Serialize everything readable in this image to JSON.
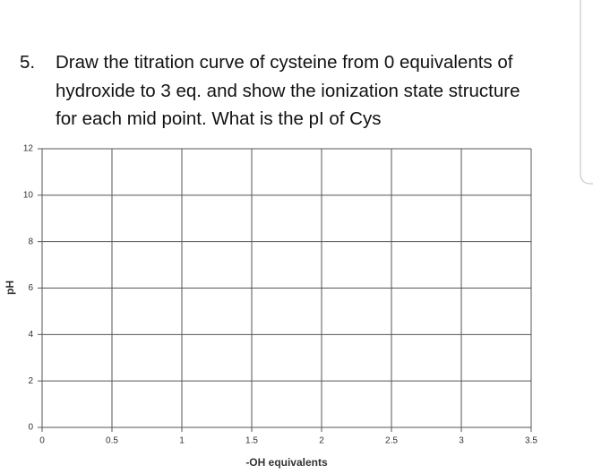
{
  "question": {
    "number": "5.",
    "lines": [
      "Draw the titration curve of cysteine from 0 equivalents of",
      "hydroxide to 3 eq. and show the ionization state structure",
      "for each mid point. What is the pI of Cys"
    ]
  },
  "chart_data": {
    "type": "line",
    "xlabel": "-OH equivalents",
    "ylabel": "pH",
    "xlim": [
      0,
      3.5
    ],
    "ylim": [
      0,
      12
    ],
    "xticks": [
      0,
      0.5,
      1,
      1.5,
      2,
      2.5,
      3,
      3.5
    ],
    "yticks": [
      0,
      2,
      4,
      6,
      8,
      10,
      12
    ],
    "grid": true
  }
}
